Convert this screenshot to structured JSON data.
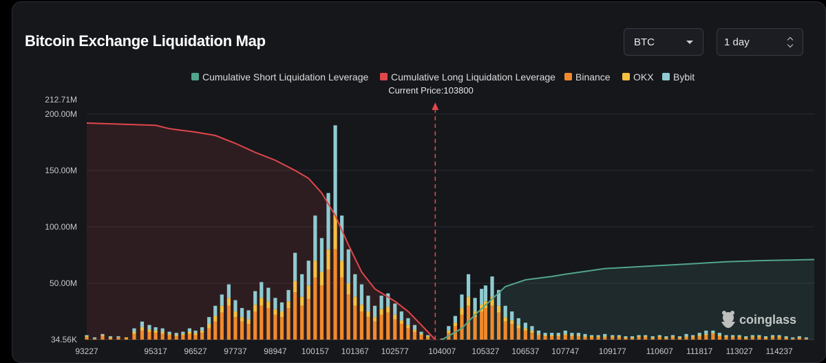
{
  "header": {
    "title": "Bitcoin Exchange Liquidation Map",
    "coin_select": "BTC",
    "range_select": "1 day"
  },
  "colors": {
    "short_cum": "#52a58c",
    "long_cum": "#e0474b",
    "binance": "#f08a2c",
    "okx": "#f4c041",
    "bybit": "#8fcbd1"
  },
  "watermark": "coinglass",
  "chart_data": {
    "type": "bar",
    "title": "",
    "current_price_label": "Current Price:103800",
    "current_price": 103800,
    "legend": [
      "Cumulative Short Liquidation Leverage",
      "Cumulative Long Liquidation Leverage",
      "Binance",
      "OKX",
      "Bybit"
    ],
    "legend_placement": "top-center",
    "y_ticks": [
      "212.71M",
      "200.00M",
      "150.00M",
      "100.00M",
      "50.00M",
      "34.56K"
    ],
    "y_tick_values": [
      212.71,
      200,
      150,
      100,
      50,
      0
    ],
    "y_unit": "M",
    "ylim": [
      0,
      212.71
    ],
    "x_tick_labels": [
      "93227",
      "95317",
      "96527",
      "97737",
      "98947",
      "100157",
      "101367",
      "102577",
      "104007",
      "105327",
      "106537",
      "107747",
      "109177",
      "110607",
      "111817",
      "113027",
      "114237"
    ],
    "xlim": [
      93227,
      115300
    ],
    "grid": "horizontal",
    "bars": [
      [
        93227,
        2,
        1,
        1
      ],
      [
        93467,
        1,
        0,
        1
      ],
      [
        93707,
        3,
        1,
        1
      ],
      [
        93947,
        1,
        1,
        1
      ],
      [
        94187,
        2,
        0,
        1
      ],
      [
        94427,
        1,
        1,
        0
      ],
      [
        94667,
        5,
        2,
        3
      ],
      [
        94907,
        8,
        3,
        5
      ],
      [
        95127,
        7,
        2,
        4
      ],
      [
        95317,
        6,
        2,
        3
      ],
      [
        95527,
        5,
        2,
        3
      ],
      [
        95737,
        4,
        1,
        2
      ],
      [
        95947,
        3,
        1,
        2
      ],
      [
        96147,
        4,
        1,
        2
      ],
      [
        96347,
        5,
        2,
        3
      ],
      [
        96527,
        4,
        2,
        2
      ],
      [
        96727,
        6,
        2,
        3
      ],
      [
        96937,
        10,
        4,
        6
      ],
      [
        97127,
        16,
        5,
        9
      ],
      [
        97327,
        24,
        6,
        10
      ],
      [
        97537,
        30,
        7,
        12
      ],
      [
        97737,
        20,
        5,
        10
      ],
      [
        97937,
        16,
        4,
        8
      ],
      [
        98137,
        14,
        4,
        8
      ],
      [
        98337,
        25,
        6,
        12
      ],
      [
        98527,
        30,
        7,
        14
      ],
      [
        98737,
        28,
        6,
        12
      ],
      [
        98947,
        22,
        5,
        10
      ],
      [
        99147,
        20,
        5,
        8
      ],
      [
        99347,
        28,
        6,
        10
      ],
      [
        99547,
        42,
        10,
        25
      ],
      [
        99757,
        30,
        8,
        20
      ],
      [
        99957,
        36,
        12,
        22
      ],
      [
        100157,
        55,
        15,
        40
      ],
      [
        100357,
        48,
        12,
        30
      ],
      [
        100557,
        62,
        18,
        50
      ],
      [
        100767,
        80,
        30,
        80
      ],
      [
        100967,
        55,
        15,
        40
      ],
      [
        101167,
        40,
        10,
        30
      ],
      [
        101367,
        30,
        8,
        20
      ],
      [
        101567,
        25,
        6,
        18
      ],
      [
        101767,
        20,
        5,
        14
      ],
      [
        101967,
        16,
        4,
        10
      ],
      [
        102167,
        22,
        5,
        12
      ],
      [
        102367,
        24,
        5,
        12
      ],
      [
        102577,
        18,
        4,
        10
      ],
      [
        102777,
        14,
        3,
        8
      ],
      [
        102977,
        10,
        3,
        6
      ],
      [
        103177,
        7,
        2,
        4
      ],
      [
        103377,
        4,
        1,
        2
      ],
      [
        103577,
        2,
        1,
        1
      ],
      [
        104007,
        1,
        0,
        0
      ],
      [
        104207,
        6,
        2,
        4
      ],
      [
        104407,
        12,
        3,
        6
      ],
      [
        104607,
        22,
        6,
        12
      ],
      [
        104807,
        30,
        8,
        20
      ],
      [
        105007,
        20,
        5,
        12
      ],
      [
        105207,
        25,
        6,
        14
      ],
      [
        105327,
        28,
        6,
        14
      ],
      [
        105527,
        30,
        8,
        18
      ],
      [
        105727,
        24,
        6,
        14
      ],
      [
        105927,
        16,
        4,
        10
      ],
      [
        106127,
        14,
        3,
        8
      ],
      [
        106327,
        10,
        3,
        6
      ],
      [
        106537,
        8,
        2,
        5
      ],
      [
        106737,
        6,
        2,
        4
      ],
      [
        106937,
        4,
        1,
        3
      ],
      [
        107137,
        3,
        1,
        2
      ],
      [
        107337,
        3,
        1,
        2
      ],
      [
        107537,
        3,
        1,
        2
      ],
      [
        107747,
        4,
        1,
        3
      ],
      [
        107947,
        3,
        1,
        2
      ],
      [
        108147,
        3,
        1,
        2
      ],
      [
        108347,
        2,
        1,
        2
      ],
      [
        108547,
        2,
        1,
        1
      ],
      [
        108747,
        2,
        1,
        1
      ],
      [
        108947,
        2,
        1,
        2
      ],
      [
        109177,
        2,
        1,
        1
      ],
      [
        109377,
        2,
        1,
        1
      ],
      [
        109577,
        1,
        1,
        1
      ],
      [
        109777,
        1,
        1,
        1
      ],
      [
        109977,
        2,
        1,
        1
      ],
      [
        110177,
        2,
        1,
        1
      ],
      [
        110397,
        1,
        1,
        1
      ],
      [
        110607,
        2,
        1,
        1
      ],
      [
        110807,
        1,
        1,
        1
      ],
      [
        111007,
        2,
        1,
        1
      ],
      [
        111217,
        1,
        1,
        1
      ],
      [
        111417,
        2,
        1,
        2
      ],
      [
        111617,
        2,
        1,
        1
      ],
      [
        111817,
        3,
        1,
        2
      ],
      [
        112017,
        4,
        1,
        3
      ],
      [
        112227,
        5,
        1,
        2
      ],
      [
        112427,
        3,
        1,
        2
      ],
      [
        112627,
        2,
        1,
        1
      ],
      [
        112827,
        2,
        1,
        1
      ],
      [
        113027,
        2,
        1,
        1
      ],
      [
        113227,
        1,
        1,
        1
      ],
      [
        113427,
        2,
        1,
        1
      ],
      [
        113627,
        2,
        1,
        1
      ],
      [
        113827,
        1,
        1,
        1
      ],
      [
        114037,
        2,
        1,
        1
      ],
      [
        114237,
        2,
        1,
        1
      ],
      [
        114447,
        1,
        1,
        1
      ],
      [
        114647,
        1,
        0,
        1
      ],
      [
        114847,
        1,
        1,
        1
      ],
      [
        115057,
        1,
        0,
        1
      ]
    ],
    "bars_fields": [
      "price",
      "binance",
      "okx",
      "bybit"
    ],
    "long_cumulative": [
      [
        93227,
        192
      ],
      [
        95317,
        190
      ],
      [
        95737,
        187
      ],
      [
        96527,
        184
      ],
      [
        97127,
        181
      ],
      [
        97737,
        174
      ],
      [
        98337,
        166
      ],
      [
        98947,
        159
      ],
      [
        99547,
        150
      ],
      [
        99957,
        143
      ],
      [
        100357,
        130
      ],
      [
        100767,
        110
      ],
      [
        101167,
        84
      ],
      [
        101567,
        60
      ],
      [
        101967,
        45
      ],
      [
        102577,
        34
      ],
      [
        102977,
        25
      ],
      [
        103377,
        13
      ],
      [
        103800,
        0
      ]
    ],
    "short_cumulative": [
      [
        104007,
        0
      ],
      [
        104607,
        10
      ],
      [
        105007,
        22
      ],
      [
        105527,
        36
      ],
      [
        105927,
        47
      ],
      [
        106537,
        53
      ],
      [
        107337,
        56
      ],
      [
        107747,
        58
      ],
      [
        108947,
        63
      ],
      [
        110177,
        65
      ],
      [
        111417,
        67
      ],
      [
        112627,
        69
      ],
      [
        113627,
        70
      ],
      [
        115300,
        71
      ]
    ]
  }
}
